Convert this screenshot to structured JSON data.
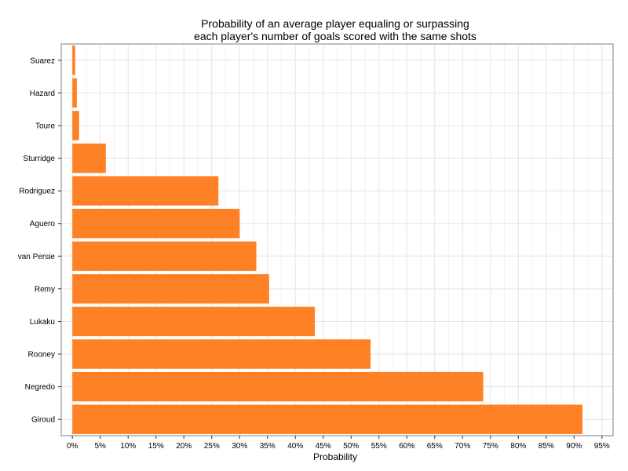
{
  "chart_data": {
    "type": "bar",
    "orientation": "horizontal",
    "title": "Probability of an average player equaling or surpassing each player's number of goals scored with the same shots",
    "title_lines": [
      "Probability of an average player equaling or surpassing",
      "each player's number of goals scored with the same shots"
    ],
    "xlabel": "Probability",
    "ylabel": "",
    "categories": [
      "Suarez",
      "Hazard",
      "Toure",
      "Sturridge",
      "Rodriguez",
      "Aguero",
      "van Persie",
      "Remy",
      "Lukaku",
      "Rooney",
      "Negredo",
      "Giroud"
    ],
    "values": [
      0.005,
      0.008,
      0.012,
      0.06,
      0.262,
      0.3,
      0.33,
      0.353,
      0.435,
      0.535,
      0.737,
      0.915
    ],
    "xlim": [
      -0.02,
      0.97
    ],
    "xticks": [
      0,
      0.05,
      0.1,
      0.15,
      0.2,
      0.25,
      0.3,
      0.35,
      0.4,
      0.45,
      0.5,
      0.55,
      0.6,
      0.65,
      0.7,
      0.75,
      0.8,
      0.85,
      0.9,
      0.95
    ],
    "xtick_labels": [
      "0%",
      "5%",
      "10%",
      "15%",
      "20%",
      "25%",
      "30%",
      "35%",
      "40%",
      "45%",
      "50%",
      "55%",
      "60%",
      "65%",
      "70%",
      "75%",
      "80%",
      "85%",
      "90%",
      "95%"
    ],
    "grid": true,
    "legend": "none",
    "bar_color": "#FF8125",
    "grid_color": "#E5E5E5",
    "panel_border_color": "#7F7F7F"
  }
}
